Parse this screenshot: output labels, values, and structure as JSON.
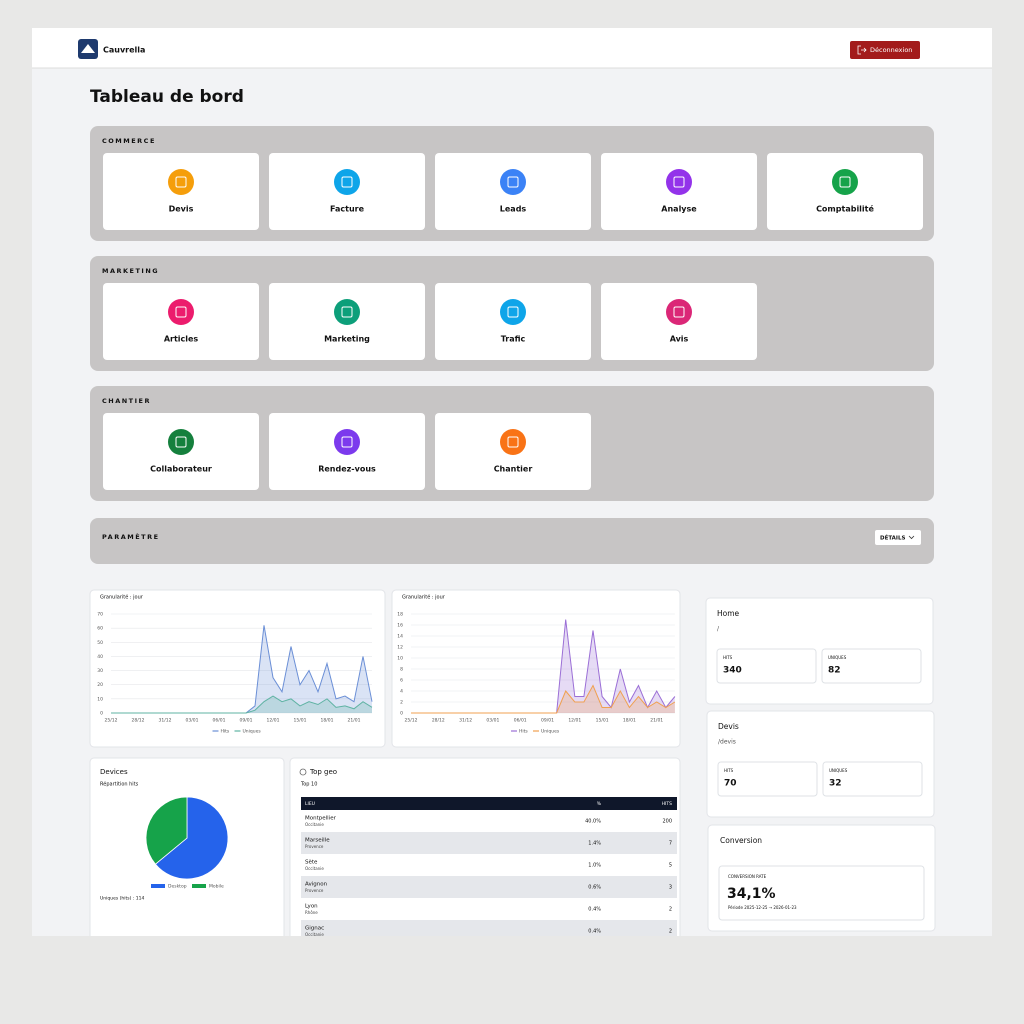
{
  "header": {
    "brand": "Cauvrella",
    "logout": "Déconnexion"
  },
  "title": "Tableau de bord",
  "sections": [
    {
      "title": "COMMERCE",
      "tiles": [
        {
          "label": "Devis",
          "color": "#f59e0b"
        },
        {
          "label": "Facture",
          "color": "#0ea5e9"
        },
        {
          "label": "Leads",
          "color": "#3b82f6"
        },
        {
          "label": "Analyse",
          "color": "#9333ea"
        },
        {
          "label": "Comptabilité",
          "color": "#16a34a"
        }
      ]
    },
    {
      "title": "MARKETING",
      "tiles": [
        {
          "label": "Articles",
          "color": "#ec1c6d"
        },
        {
          "label": "Marketing",
          "color": "#0d9f7a"
        },
        {
          "label": "Trafic",
          "color": "#0ea5e9"
        },
        {
          "label": "Avis",
          "color": "#db2777"
        }
      ]
    },
    {
      "title": "CHANTIER",
      "tiles": [
        {
          "label": "Collaborateur",
          "color": "#15803d"
        },
        {
          "label": "Rendez-vous",
          "color": "#7c3aed"
        },
        {
          "label": "Chantier",
          "color": "#f97316"
        }
      ]
    }
  ],
  "settings": {
    "title": "PARAMÈTRE",
    "button": "DÉTAILS"
  },
  "traffic_charts": [
    {
      "type": "area",
      "subtitle": "Granularité : jour",
      "categories": [
        "25/12",
        null,
        null,
        "28/12",
        null,
        null,
        "31/12",
        null,
        null,
        "03/01",
        null,
        null,
        "06/01",
        null,
        null,
        "09/01",
        null,
        null,
        "12/01",
        null,
        null,
        "15/01",
        null,
        null,
        "18/01",
        null,
        null,
        "21/01",
        null,
        null
      ],
      "ylim": [
        0,
        70
      ],
      "yticks": [
        0,
        10,
        20,
        30,
        40,
        50,
        60,
        70
      ],
      "series": [
        {
          "name": "Hits",
          "color": "#6b8fd6",
          "values": [
            0,
            0,
            0,
            0,
            0,
            0,
            0,
            0,
            0,
            0,
            0,
            0,
            0,
            0,
            0,
            0,
            5,
            62,
            25,
            15,
            47,
            20,
            30,
            15,
            35,
            10,
            12,
            8,
            40,
            8
          ]
        },
        {
          "name": "Uniques",
          "color": "#5fb3a3",
          "values": [
            0,
            0,
            0,
            0,
            0,
            0,
            0,
            0,
            0,
            0,
            0,
            0,
            0,
            0,
            0,
            0,
            2,
            8,
            12,
            8,
            10,
            5,
            8,
            6,
            10,
            4,
            5,
            3,
            8,
            4
          ]
        }
      ]
    },
    {
      "type": "area",
      "subtitle": "Granularité : jour",
      "categories": [
        "25/12",
        null,
        null,
        "28/12",
        null,
        null,
        "31/12",
        null,
        null,
        "03/01",
        null,
        null,
        "06/01",
        null,
        null,
        "09/01",
        null,
        null,
        "12/01",
        null,
        null,
        "15/01",
        null,
        null,
        "18/01",
        null,
        null,
        "21/01",
        null,
        null
      ],
      "ylim": [
        0,
        18
      ],
      "yticks": [
        0,
        2,
        4,
        6,
        8,
        10,
        12,
        14,
        16,
        18
      ],
      "series": [
        {
          "name": "Hits",
          "color": "#9b6fd6",
          "values": [
            0,
            0,
            0,
            0,
            0,
            0,
            0,
            0,
            0,
            0,
            0,
            0,
            0,
            0,
            0,
            0,
            0,
            17,
            3,
            3,
            15,
            3,
            1,
            8,
            2,
            5,
            1,
            4,
            1,
            3
          ]
        },
        {
          "name": "Uniques",
          "color": "#f0a050",
          "values": [
            0,
            0,
            0,
            0,
            0,
            0,
            0,
            0,
            0,
            0,
            0,
            0,
            0,
            0,
            0,
            0,
            0,
            4,
            2,
            2,
            5,
            1,
            1,
            4,
            1,
            3,
            1,
            2,
            1,
            2
          ]
        }
      ]
    }
  ],
  "devices": {
    "type": "pie",
    "title": "Devices",
    "subtitle": "Répartition hits",
    "categories": [
      "Desktop",
      "Mobile"
    ],
    "colors": [
      "#2563eb",
      "#16a34a"
    ],
    "values": [
      64,
      36
    ],
    "footer": "Uniques (hits) : 114"
  },
  "top_geo": {
    "title": "Top geo",
    "subtitle": "Top 10",
    "columns": [
      "LIEU",
      "%",
      "HITS"
    ],
    "rows": [
      {
        "city": "Montpellier",
        "region": "Occitanie",
        "percent": "40.0%",
        "hits": 200
      },
      {
        "city": "Marseille",
        "region": "Provence",
        "percent": "1.4%",
        "hits": 7
      },
      {
        "city": "Sète",
        "region": "Occitanie",
        "percent": "1.0%",
        "hits": 5
      },
      {
        "city": "Avignon",
        "region": "Provence",
        "percent": "0.6%",
        "hits": 3
      },
      {
        "city": "Lyon",
        "region": "Rhône",
        "percent": "0.4%",
        "hits": 2
      },
      {
        "city": "Gignac",
        "region": "Occitanie",
        "percent": "0.4%",
        "hits": 2
      }
    ]
  },
  "pages": [
    {
      "title": "Home",
      "path": "/",
      "hits_label": "HITS",
      "hits": 340,
      "uniques_label": "UNIQUES",
      "uniques": 82
    },
    {
      "title": "Devis",
      "path": "/devis",
      "hits_label": "HITS",
      "hits": 70,
      "uniques_label": "UNIQUES",
      "uniques": 32
    }
  ],
  "conversion": {
    "title": "Conversion",
    "label": "CONVERSION RATE",
    "value": "34,1%",
    "period": "Période 2025-12-25 → 2026-01-23"
  }
}
